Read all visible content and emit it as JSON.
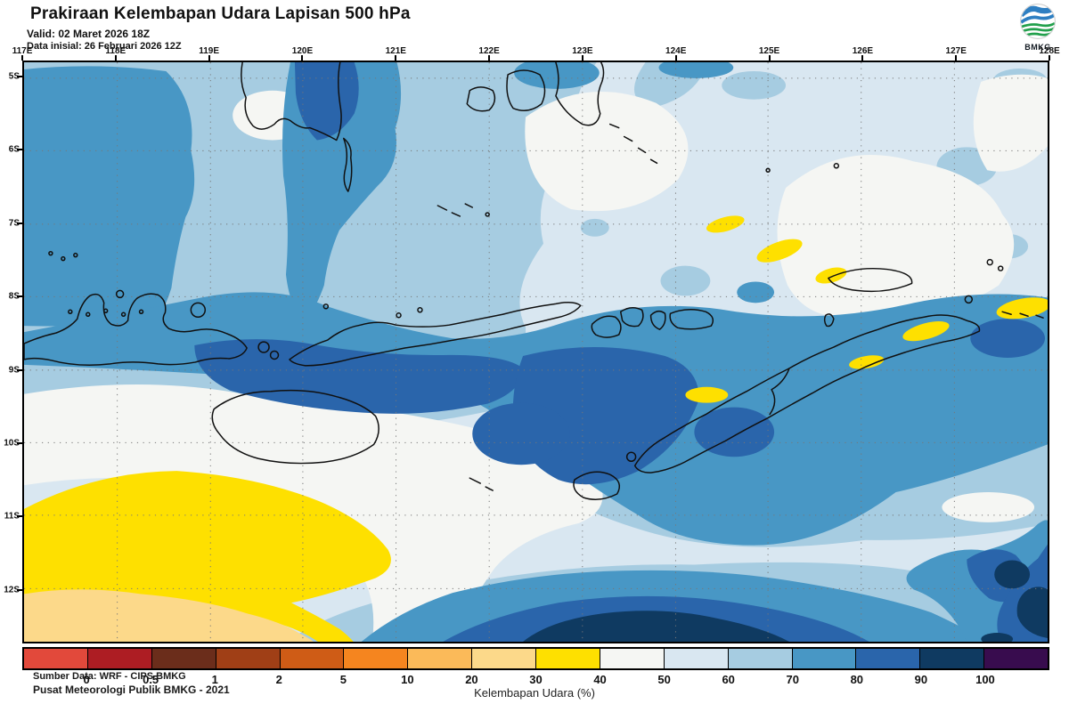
{
  "header": {
    "title": "Prakiraan Kelembapan Udara Lapisan 500 hPa",
    "valid_label": "Valid: 02 Maret 2026 18Z",
    "init_label": "Data inisial: 26 Februari 2026 12Z"
  },
  "logo": {
    "label": "BMKG",
    "blue": "#2e7fc2",
    "green": "#22a04c"
  },
  "axes": {
    "lon_labels": [
      "117E",
      "118E",
      "119E",
      "120E",
      "121E",
      "122E",
      "123E",
      "124E",
      "125E",
      "126E",
      "127E",
      "128E"
    ],
    "lat_labels": [
      "5S",
      "6S",
      "7S",
      "8S",
      "9S",
      "10S",
      "11S",
      "12S"
    ]
  },
  "map_annotations": {
    "source_line1": "Sumber Data: WRF - CIPS BMKG",
    "source_line2": "Pusat Meteorologi Publik BMKG -  2021"
  },
  "colorbar": {
    "caption": "Kelembapan Udara (%)",
    "ticks": [
      "0",
      "0.5",
      "1",
      "2",
      "5",
      "10",
      "20",
      "30",
      "40",
      "50",
      "60",
      "70",
      "80",
      "90",
      "100"
    ],
    "colors": [
      "#e2493b",
      "#ad1d23",
      "#6b2d1b",
      "#a03f16",
      "#cf5c16",
      "#f5851f",
      "#fbba59",
      "#fcd98a",
      "#fee000",
      "#f5f6f3",
      "#d9e7f1",
      "#a6cce1",
      "#4897c5",
      "#2a65ab",
      "#0f3a61",
      "#380c4e"
    ],
    "unit": "%"
  }
}
